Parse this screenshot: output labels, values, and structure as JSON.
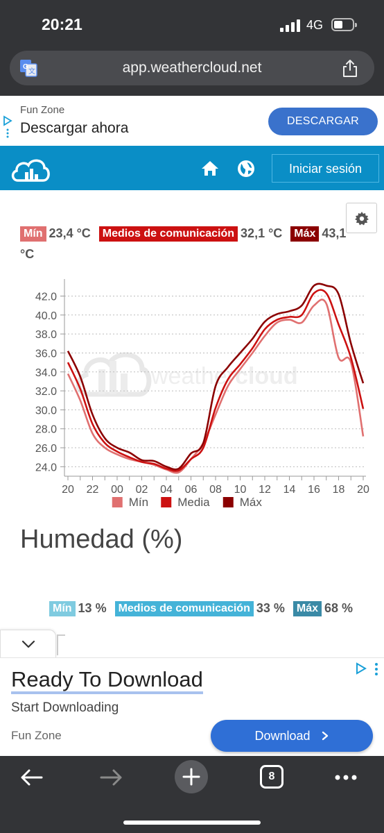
{
  "status_bar": {
    "time": "20:21",
    "network": "4G"
  },
  "browser": {
    "url": "app.weathercloud.net",
    "tab_count": "8"
  },
  "ad_top": {
    "brand": "Fun Zone",
    "headline": "Descargar ahora",
    "cta": "DESCARGAR",
    "cta_color": "#3a72cc"
  },
  "site_nav": {
    "login_label": "Iniciar sesión",
    "bar_color": "#0a8ec6"
  },
  "temperature": {
    "legend": {
      "min_label": "Mín",
      "min_value": "23,4 °C",
      "avg_label": "Medios de comunicación",
      "avg_value": "32,1 °C",
      "max_label": "Máx",
      "max_value": "43,1",
      "max_unit_wrap": "°C"
    },
    "colors": {
      "min": "#e07070",
      "avg": "#cc1111",
      "max": "#8b0000"
    }
  },
  "chart_data": {
    "type": "line",
    "x": [
      "20",
      "21",
      "22",
      "23",
      "00",
      "01",
      "02",
      "03",
      "04",
      "05",
      "06",
      "07",
      "08",
      "09",
      "10",
      "11",
      "12",
      "13",
      "14",
      "15",
      "16",
      "17",
      "18",
      "19",
      "20"
    ],
    "x_tick_labels": [
      "20",
      "22",
      "00",
      "02",
      "04",
      "06",
      "08",
      "10",
      "12",
      "14",
      "16",
      "18",
      "20"
    ],
    "y_ticks": [
      "24.0",
      "26.0",
      "28.0",
      "30.0",
      "32.0",
      "34.0",
      "36.0",
      "38.0",
      "40.0",
      "42.0"
    ],
    "ylim": [
      23,
      43.5
    ],
    "grid": true,
    "legend_position": "bottom",
    "series": [
      {
        "name": "Mín",
        "color": "#e07070",
        "values": [
          33.8,
          31.0,
          27.5,
          26.0,
          25.3,
          24.8,
          24.5,
          24.2,
          23.7,
          23.4,
          24.8,
          26.5,
          29.5,
          32.5,
          34.3,
          36.0,
          37.8,
          39.2,
          39.5,
          39.2,
          41.0,
          41.2,
          35.5,
          35.0,
          27.2
        ]
      },
      {
        "name": "Media",
        "color": "#cc1111",
        "values": [
          35.0,
          32.2,
          28.5,
          26.5,
          25.6,
          25.0,
          24.5,
          24.3,
          23.8,
          23.6,
          24.8,
          26.0,
          30.2,
          33.2,
          34.8,
          36.5,
          38.5,
          39.5,
          39.8,
          40.0,
          42.3,
          42.3,
          39.0,
          35.5,
          30.1
        ]
      },
      {
        "name": "Máx",
        "color": "#8b0000",
        "values": [
          36.2,
          33.5,
          29.5,
          27.0,
          26.0,
          25.5,
          24.7,
          24.6,
          24.0,
          23.8,
          25.4,
          26.5,
          32.5,
          34.5,
          36.0,
          37.5,
          39.3,
          40.1,
          40.4,
          41.0,
          43.1,
          43.1,
          42.2,
          37.0,
          32.8
        ]
      }
    ]
  },
  "watermark": {
    "part1": "weather",
    "part2": "cloud"
  },
  "humidity": {
    "title": "Humedad (%)",
    "legend": {
      "min_label": "Mín",
      "min_value": "13 %",
      "avg_label": "Medios de comunicación",
      "avg_value": "33 %",
      "max_label": "Máx",
      "max_value": "68 %"
    },
    "colors": {
      "min": "#7fcbe0",
      "avg": "#44b3d8",
      "max": "#3a8aa6"
    }
  },
  "ad_bottom": {
    "headline": "Ready To Download",
    "subline": "Start Downloading",
    "brand": "Fun Zone",
    "cta": "Download",
    "cta_color": "#2f6fd6"
  },
  "icons": [
    "translate-icon",
    "share-icon",
    "adchoices-icon",
    "weathercloud-logo-icon",
    "home-icon",
    "globe-icon",
    "gear-icon",
    "chevron-down-icon",
    "chevron-right-icon",
    "back-arrow-icon",
    "forward-arrow-icon",
    "plus-icon",
    "more-icon"
  ]
}
